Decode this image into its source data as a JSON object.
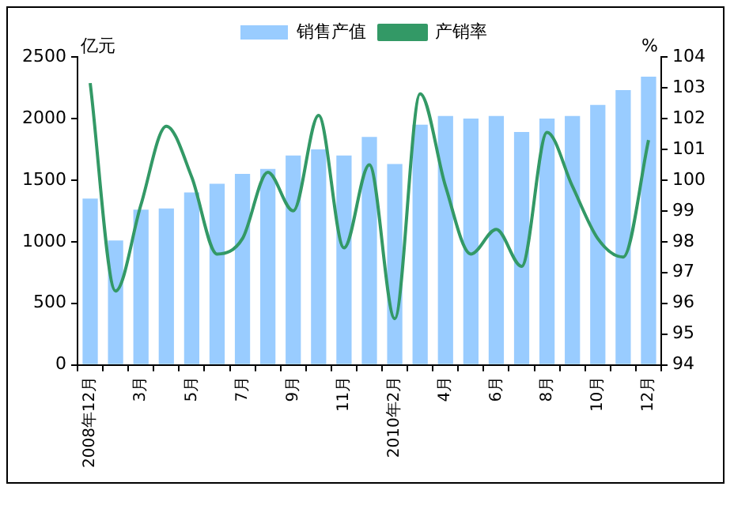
{
  "chart_data": {
    "type": "bar",
    "ylabel": "亿元",
    "y2label": "%",
    "categories": [
      "2008年12月",
      null,
      "3月",
      null,
      "5月",
      null,
      "7月",
      null,
      "9月",
      null,
      "11月",
      null,
      "2010年2月",
      null,
      "4月",
      null,
      "6月",
      null,
      "8月",
      null,
      "10月",
      null,
      "12月"
    ],
    "series": [
      {
        "name": "销售产值",
        "color": "#99ccff",
        "values": [
          1350,
          1010,
          1260,
          1270,
          1400,
          1470,
          1550,
          1590,
          1700,
          1750,
          1700,
          1850,
          1630,
          1950,
          2020,
          2000,
          2020,
          1890,
          2000,
          2020,
          2110,
          2230,
          2340
        ]
      },
      {
        "name": "产销率",
        "type": "line",
        "axis": "y2",
        "color": "#339966",
        "values": [
          103.15,
          96.4,
          99.2,
          101.75,
          100.1,
          97.6,
          98.1,
          100.25,
          99.0,
          102.1,
          97.8,
          100.5,
          95.5,
          102.8,
          99.8,
          97.6,
          98.4,
          97.2,
          101.55,
          99.8,
          98.1,
          97.5,
          101.3
        ]
      }
    ],
    "ylim": [
      0,
      2500
    ],
    "yticks": [
      0,
      500,
      1000,
      1500,
      2000,
      2500
    ],
    "y2lim": [
      94,
      104
    ],
    "y2ticks": [
      94,
      95,
      96,
      97,
      98,
      99,
      100,
      101,
      102,
      103,
      104
    ],
    "grid": false,
    "legend": "top",
    "marker": "none",
    "line_style": "solid"
  }
}
